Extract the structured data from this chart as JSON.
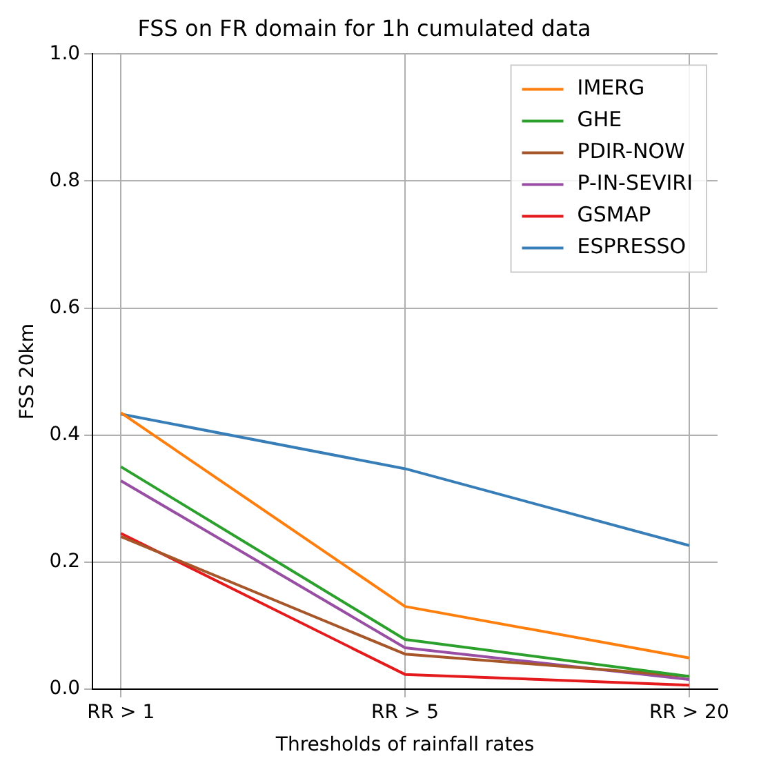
{
  "chart_data": {
    "type": "line",
    "title": "FSS on FR domain for 1h cumulated data",
    "xlabel": "Thresholds of rainfall rates",
    "ylabel": "FSS 20km",
    "categories": [
      "RR > 1",
      "RR > 5",
      "RR > 20"
    ],
    "series": [
      {
        "name": "IMERG",
        "color": "#ff7f0e",
        "values": [
          0.435,
          0.13,
          0.049
        ]
      },
      {
        "name": "GHE",
        "color": "#2ca02c",
        "values": [
          0.35,
          0.078,
          0.02
        ]
      },
      {
        "name": "PDIR-NOW",
        "color": "#a65628",
        "values": [
          0.24,
          0.055,
          0.02
        ]
      },
      {
        "name": "P-IN-SEVIRI",
        "color": "#984ea3",
        "values": [
          0.328,
          0.065,
          0.015
        ]
      },
      {
        "name": "GSMAP",
        "color": "#e41a1c",
        "values": [
          0.245,
          0.023,
          0.006
        ]
      },
      {
        "name": "ESPRESSO",
        "color": "#377eb8",
        "values": [
          0.433,
          0.347,
          0.226
        ]
      }
    ],
    "ylim": [
      0,
      1
    ],
    "yticks": [
      {
        "value": 0,
        "label": "0.0"
      },
      {
        "value": 0.2,
        "label": "0.2"
      },
      {
        "value": 0.4,
        "label": "0.4"
      },
      {
        "value": 0.6,
        "label": "0.6"
      },
      {
        "value": 0.8,
        "label": "0.8"
      },
      {
        "value": 1,
        "label": "1.0"
      }
    ],
    "grid": true,
    "legend": "top right",
    "marker": "none",
    "line_style": "solid"
  }
}
